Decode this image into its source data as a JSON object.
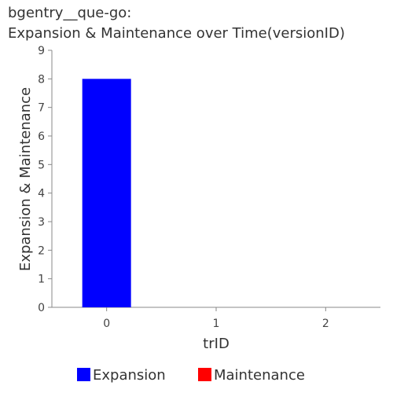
{
  "chart_data": {
    "type": "bar",
    "title": "bgentry__que-go:",
    "subtitle": "Expansion & Maintenance over Time(versionID)",
    "xlabel": "trID",
    "ylabel": "Expansion & Maintenance",
    "categories": [
      "0",
      "1",
      "2"
    ],
    "ylim": [
      0,
      9
    ],
    "yticks": [
      0,
      1,
      2,
      3,
      4,
      5,
      6,
      7,
      8,
      9
    ],
    "series": [
      {
        "name": "Expansion",
        "color": "#0000ff",
        "values": [
          8,
          0,
          0
        ]
      },
      {
        "name": "Maintenance",
        "color": "#ff0000",
        "values": [
          0,
          0,
          0
        ]
      }
    ],
    "legend_position": "bottom",
    "grid": false
  }
}
